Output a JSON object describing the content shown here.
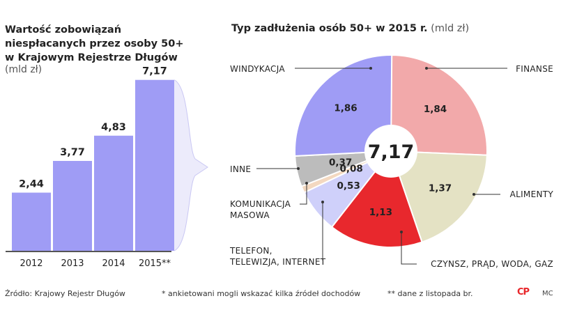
{
  "chart_data": [
    {
      "type": "bar",
      "title_lines": [
        "Wartość zobowiązań",
        "niespłacanych przez osoby 50+",
        "w Krajowym Rejestrze Długów"
      ],
      "unit": "(mld zł)",
      "categories": [
        "2012",
        "2013",
        "2014",
        "2015**"
      ],
      "values": [
        2.44,
        3.77,
        4.83,
        7.17
      ],
      "value_labels": [
        "2,44",
        "3,77",
        "4,83",
        "7,17"
      ],
      "ylim": [
        0,
        7.6
      ],
      "color": "#9f9cf5"
    },
    {
      "type": "pie",
      "title": "Typ zadłużenia osób 50+ w 2015 r.",
      "unit": "(mld zł)",
      "center_label": "7,17",
      "total": 7.17,
      "slices": [
        {
          "label": "FINANSE",
          "value": 1.84,
          "value_label": "1,84",
          "color": "#f2a9aa"
        },
        {
          "label": "ALIMENTY",
          "value": 1.37,
          "value_label": "1,37",
          "color": "#e4e2c4"
        },
        {
          "label": "CZYNSZ, PRĄD, WODA, GAZ",
          "value": 1.13,
          "value_label": "1,13",
          "color": "#e8282d"
        },
        {
          "label": "TELEFON, TELEWIZJA, INTERNET",
          "value": 0.53,
          "value_label": "0,53",
          "color": "#cfd0fa"
        },
        {
          "label": "KOMUNIKACJA MASOWA",
          "value": 0.08,
          "value_label": "0,08",
          "color": "#f3d8c0"
        },
        {
          "label": "INNE",
          "value": 0.37,
          "value_label": "0,37",
          "color": "#bcbcbc"
        },
        {
          "label": "WINDYKACJA",
          "value": 1.86,
          "value_label": "1,86",
          "color": "#9f9cf5"
        }
      ]
    }
  ],
  "footer": {
    "source": "Źródło: Krajowy Rejestr Długów",
    "note1": "* ankietowani mogli wskazać kilka źródeł dochodów",
    "note2": "** dane z listopada br.",
    "logo": "CP",
    "credit": "MC"
  }
}
